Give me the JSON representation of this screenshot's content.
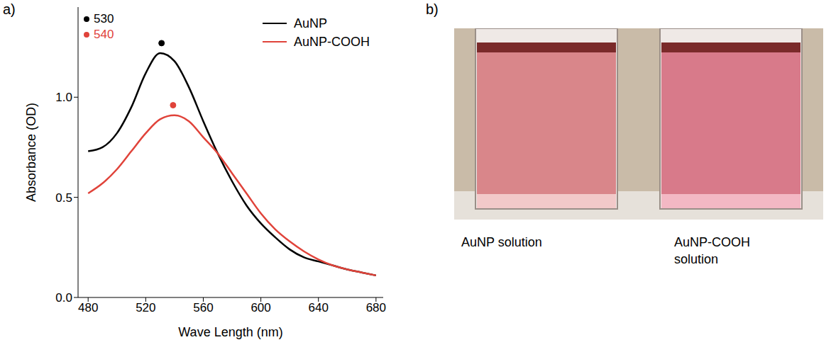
{
  "chart_data": {
    "type": "line",
    "panel_label": "a)",
    "x_label": "Wave Length (nm)",
    "y_label": "Absorbance (OD)",
    "x": [
      480,
      490,
      500,
      510,
      520,
      530,
      540,
      550,
      560,
      570,
      580,
      590,
      600,
      610,
      620,
      630,
      640,
      650,
      660,
      670,
      680
    ],
    "series": [
      {
        "name": "AuNP",
        "color": "#000000",
        "line_style": "solid",
        "values": [
          0.73,
          0.75,
          0.82,
          0.95,
          1.12,
          1.22,
          1.18,
          1.05,
          0.88,
          0.72,
          0.58,
          0.46,
          0.37,
          0.3,
          0.24,
          0.2,
          0.18,
          0.16,
          0.14,
          0.125,
          0.11
        ]
      },
      {
        "name": "AuNP-COOH",
        "color": "#e0433a",
        "line_style": "solid",
        "values": [
          0.52,
          0.57,
          0.64,
          0.73,
          0.82,
          0.89,
          0.91,
          0.88,
          0.8,
          0.72,
          0.62,
          0.52,
          0.42,
          0.34,
          0.28,
          0.23,
          0.19,
          0.16,
          0.14,
          0.125,
          0.11
        ]
      }
    ],
    "xlim": [
      473,
      685
    ],
    "xticks": [
      480,
      520,
      560,
      600,
      640,
      680
    ],
    "ylim": [
      0,
      1.45
    ],
    "yticks": [
      {
        "value": 0,
        "label": "0.0"
      },
      {
        "value": 0.5,
        "label": "0.5"
      },
      {
        "value": 1,
        "label": "1.0"
      }
    ],
    "grid": false,
    "legend": "upper right",
    "annotations": [
      {
        "text": "530",
        "color": "#000000",
        "x": 531,
        "y": 1.27
      },
      {
        "text": "540",
        "color": "#e0433a",
        "x": 539,
        "y": 0.96
      }
    ]
  },
  "photo_panel": {
    "panel_label": "b)",
    "captions": [
      "AuNP solution",
      "AuNP-COOH solution"
    ]
  }
}
